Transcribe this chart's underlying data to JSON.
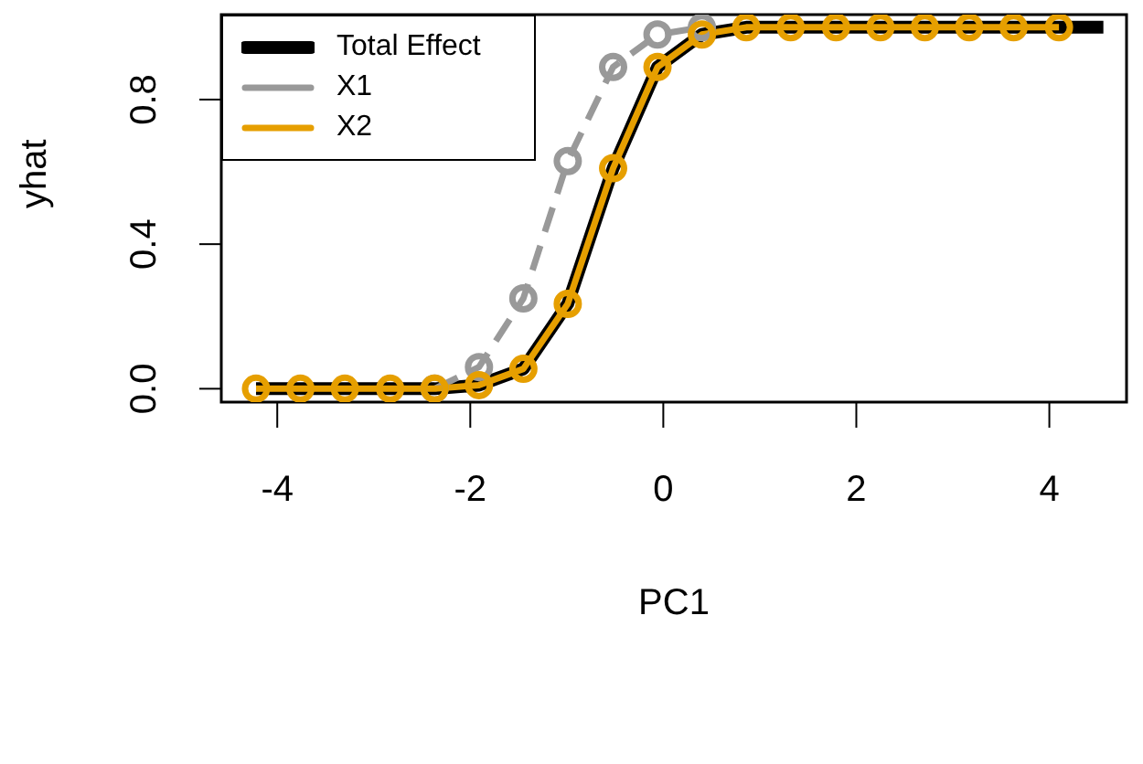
{
  "chart_data": {
    "type": "line",
    "xlabel": "PC1",
    "ylabel": "yhat",
    "x": [
      -4.22,
      -3.76,
      -3.3,
      -2.83,
      -2.37,
      -1.91,
      -1.45,
      -0.99,
      -0.52,
      -0.06,
      0.4,
      0.86,
      1.32,
      1.79,
      2.25,
      2.71,
      3.17,
      3.63,
      4.1,
      4.56
    ],
    "series": [
      {
        "name": "Total Effect",
        "color": "#000000",
        "marker": "none",
        "line_style": "solid",
        "values": [
          0,
          0,
          0,
          0,
          0,
          0.01,
          0.055,
          0.235,
          0.61,
          0.89,
          0.98,
          1,
          1,
          1,
          1,
          1,
          1,
          1,
          1,
          1
        ]
      },
      {
        "name": "X1",
        "color": "#999999",
        "marker": "circle",
        "line_style": "dashed",
        "values": [
          null,
          null,
          null,
          null,
          0,
          0.06,
          0.25,
          0.63,
          0.89,
          0.98,
          1,
          null,
          null,
          null,
          null,
          null,
          null,
          null,
          null,
          null
        ]
      },
      {
        "name": "X2",
        "color": "#e69f00",
        "marker": "circle",
        "line_style": "solid",
        "values": [
          0,
          0,
          0,
          0,
          0,
          0.01,
          0.055,
          0.235,
          0.61,
          0.89,
          0.98,
          1,
          1,
          1,
          1,
          1,
          1,
          1,
          1,
          null
        ]
      }
    ],
    "xlim": [
      -4.58,
      4.8
    ],
    "ylim": [
      -0.037,
      1.035
    ],
    "xticks": [
      -4,
      -2,
      0,
      2,
      4
    ],
    "yticks": [
      {
        "value": 0,
        "label": "0.0"
      },
      {
        "value": 0.4,
        "label": "0.4"
      },
      {
        "value": 0.8,
        "label": "0.8"
      }
    ],
    "grid": false,
    "legend": "top left"
  }
}
